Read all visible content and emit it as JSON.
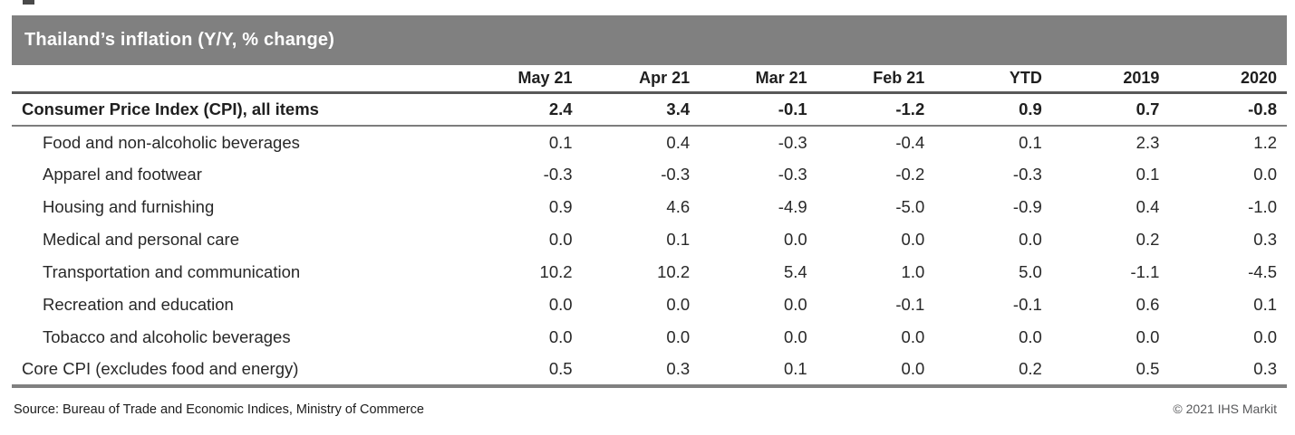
{
  "title": "Thailand’s inflation (Y/Y, % change)",
  "chart_data": {
    "type": "table",
    "title": "Thailand’s inflation (Y/Y, % change)",
    "columns": [
      "May 21",
      "Apr 21",
      "Mar 21",
      "Feb 21",
      "YTD",
      "2019",
      "2020"
    ],
    "rows": [
      {
        "label": "Consumer Price Index (CPI), all items",
        "style": "total",
        "values": [
          "2.4",
          "3.4",
          "-0.1",
          "-1.2",
          "0.9",
          "0.7",
          "-0.8"
        ]
      },
      {
        "label": "Food and non-alcoholic beverages",
        "style": "sub",
        "values": [
          "0.1",
          "0.4",
          "-0.3",
          "-0.4",
          "0.1",
          "2.3",
          "1.2"
        ]
      },
      {
        "label": "Apparel and footwear",
        "style": "sub",
        "values": [
          "-0.3",
          "-0.3",
          "-0.3",
          "-0.2",
          "-0.3",
          "0.1",
          "0.0"
        ]
      },
      {
        "label": "Housing and furnishing",
        "style": "sub",
        "values": [
          "0.9",
          "4.6",
          "-4.9",
          "-5.0",
          "-0.9",
          "0.4",
          "-1.0"
        ]
      },
      {
        "label": "Medical and personal care",
        "style": "sub",
        "values": [
          "0.0",
          "0.1",
          "0.0",
          "0.0",
          "0.0",
          "0.2",
          "0.3"
        ]
      },
      {
        "label": "Transportation and communication",
        "style": "sub",
        "values": [
          "10.2",
          "10.2",
          "5.4",
          "1.0",
          "5.0",
          "-1.1",
          "-4.5"
        ]
      },
      {
        "label": "Recreation and education",
        "style": "sub",
        "values": [
          "0.0",
          "0.0",
          "0.0",
          "-0.1",
          "-0.1",
          "0.6",
          "0.1"
        ]
      },
      {
        "label": "Tobacco and alcoholic beverages",
        "style": "sub",
        "values": [
          "0.0",
          "0.0",
          "0.0",
          "0.0",
          "0.0",
          "0.0",
          "0.0"
        ]
      },
      {
        "label": "Core CPI (excludes food and energy)",
        "style": "main",
        "values": [
          "0.5",
          "0.3",
          "0.1",
          "0.0",
          "0.2",
          "0.5",
          "0.3"
        ]
      }
    ]
  },
  "footer": {
    "source": "Source: Bureau of Trade and Economic Indices, Ministry of Commerce",
    "copyright": "© 2021 IHS Markit"
  },
  "colors": {
    "title_bar_bg": "#808080",
    "title_text": "#ffffff",
    "header_line": "#595959",
    "total_line": "#7d7d7d",
    "bottom_line": "#808080",
    "body_text": "#282828",
    "header_text": "#1f1f1f",
    "source_text": "#1c1c1c",
    "copyright_text": "#58595b"
  }
}
